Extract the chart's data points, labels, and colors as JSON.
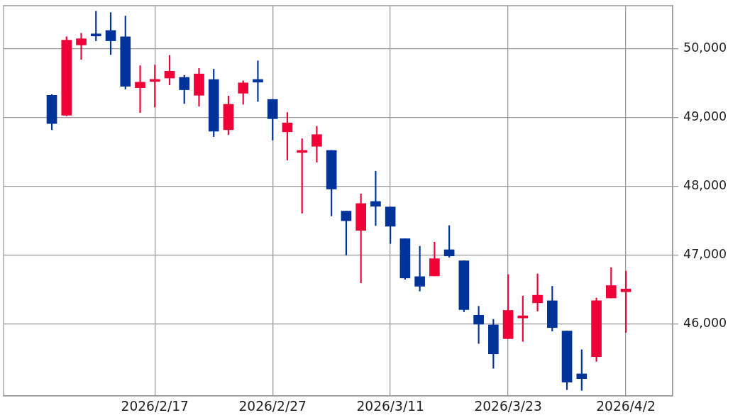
{
  "chart_data": {
    "type": "candlestick",
    "categories": [
      null,
      null,
      null,
      null,
      null,
      null,
      null,
      "2026/2/17",
      null,
      null,
      null,
      null,
      null,
      null,
      null,
      "2026/2/27",
      null,
      null,
      null,
      null,
      null,
      null,
      null,
      "2026/3/11",
      null,
      null,
      null,
      null,
      null,
      null,
      null,
      "2026/3/23",
      null,
      null,
      null,
      null,
      null,
      null,
      null,
      "2026/4/2"
    ],
    "ohlc": [
      [
        49320,
        49330,
        48820,
        48910
      ],
      [
        49030,
        50170,
        49020,
        50120
      ],
      [
        50050,
        50220,
        49840,
        50140
      ],
      [
        50210,
        50540,
        50110,
        50180
      ],
      [
        50260,
        50520,
        49910,
        50110
      ],
      [
        50170,
        50470,
        49410,
        49450
      ],
      [
        49430,
        49750,
        49070,
        49510
      ],
      [
        49520,
        49760,
        49150,
        49540
      ],
      [
        49570,
        49900,
        49470,
        49670
      ],
      [
        49580,
        49610,
        49200,
        49400
      ],
      [
        49320,
        49710,
        49160,
        49630
      ],
      [
        49550,
        49700,
        48720,
        48800
      ],
      [
        48820,
        49310,
        48750,
        49190
      ],
      [
        49350,
        49530,
        49190,
        49500
      ],
      [
        49550,
        49820,
        49230,
        49510
      ],
      [
        49260,
        49260,
        48670,
        48980
      ],
      [
        48790,
        49070,
        48380,
        48920
      ],
      [
        48490,
        48690,
        47610,
        48510
      ],
      [
        48580,
        48870,
        48350,
        48750
      ],
      [
        48520,
        48520,
        47570,
        47960
      ],
      [
        47640,
        47640,
        47000,
        47500
      ],
      [
        47360,
        47890,
        46600,
        47750
      ],
      [
        47780,
        48220,
        47430,
        47710
      ],
      [
        47700,
        47700,
        47170,
        47420
      ],
      [
        47240,
        47240,
        46650,
        46670
      ],
      [
        46690,
        47130,
        46480,
        46550
      ],
      [
        46700,
        47190,
        46700,
        46950
      ],
      [
        47080,
        47430,
        46970,
        46990
      ],
      [
        46920,
        46920,
        46180,
        46210
      ],
      [
        46130,
        46260,
        45720,
        46000
      ],
      [
        45990,
        46070,
        45360,
        45570
      ],
      [
        45790,
        46720,
        45790,
        46200
      ],
      [
        46090,
        46410,
        45750,
        46120
      ],
      [
        46310,
        46730,
        46190,
        46420
      ],
      [
        46340,
        46550,
        45900,
        45950
      ],
      [
        45900,
        45900,
        45050,
        45160
      ],
      [
        45280,
        45630,
        45040,
        45210
      ],
      [
        45530,
        46380,
        45460,
        46340
      ],
      [
        46380,
        46820,
        46380,
        46560
      ],
      [
        46470,
        46770,
        45880,
        46510
      ]
    ],
    "colors": [
      "#003399",
      "#ef0037",
      "#ef0037",
      "#003399",
      "#003399",
      "#003399",
      "#ef0037",
      "#ef0037",
      "#ef0037",
      "#003399",
      "#ef0037",
      "#003399",
      "#ef0037",
      "#ef0037",
      "#003399",
      "#003399",
      "#ef0037",
      "#ef0037",
      "#ef0037",
      "#003399",
      "#003399",
      "#ef0037",
      "#003399",
      "#003399",
      "#003399",
      "#003399",
      "#ef0037",
      "#003399",
      "#003399",
      "#003399",
      "#003399",
      "#ef0037",
      "#ef0037",
      "#ef0037",
      "#003399",
      "#003399",
      "#003399",
      "#ef0037",
      "#ef0037",
      "#ef0037"
    ],
    "ylim": [
      44960,
      50620
    ],
    "yticks": [
      {
        "value": 46000,
        "label": "46,000"
      },
      {
        "value": 47000,
        "label": "47,000"
      },
      {
        "value": 48000,
        "label": "48,000"
      },
      {
        "value": 49000,
        "label": "49,000"
      },
      {
        "value": 50000,
        "label": "50,000"
      }
    ],
    "grid": true
  }
}
